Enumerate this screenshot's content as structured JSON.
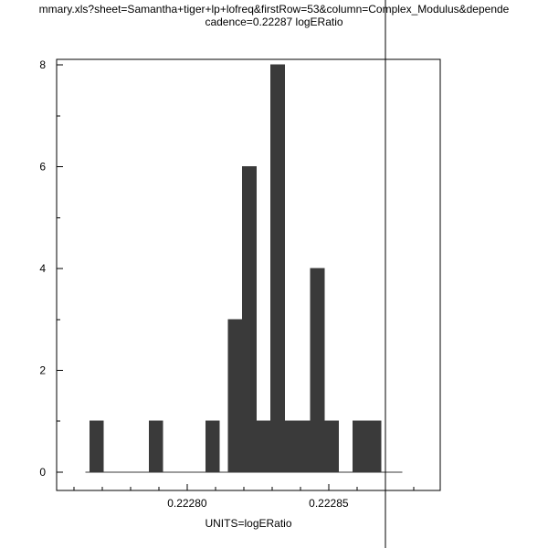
{
  "title": {
    "line1": "mmary.xls?sheet=Samantha+tiger+lp+lofreq&firstRow=53&column=Complex_Modulus&depende",
    "line2": "cadence=0.22287 logERatio"
  },
  "chart_data": {
    "type": "bar",
    "subtype": "histogram",
    "title": "cadence=0.22287 logERatio",
    "xlabel": "UNITS=logERatio",
    "ylabel": "",
    "xlim": [
      0.2227539,
      0.2228894
    ],
    "ylim": [
      -0.36,
      8.11
    ],
    "grid": false,
    "legend": false,
    "bin_width": 4.8e-06,
    "bars": [
      {
        "center": 0.222768,
        "count": 1
      },
      {
        "center": 0.222789,
        "count": 1
      },
      {
        "center": 0.222809,
        "count": 1
      },
      {
        "center": 0.222817,
        "count": 3
      },
      {
        "center": 0.222822,
        "count": 6
      },
      {
        "center": 0.222827,
        "count": 1
      },
      {
        "center": 0.222832,
        "count": 8
      },
      {
        "center": 0.222836,
        "count": 1
      },
      {
        "center": 0.222841,
        "count": 1
      },
      {
        "center": 0.222846,
        "count": 4
      },
      {
        "center": 0.222851,
        "count": 1
      },
      {
        "center": 0.222861,
        "count": 1
      },
      {
        "center": 0.222866,
        "count": 1
      }
    ],
    "baseline_extent": [
      0.222764,
      0.222876
    ],
    "marker_line": {
      "value": 0.22287,
      "label": "cadence"
    },
    "x_ticks_major": [
      {
        "value": 0.2228,
        "label": "0.22280"
      },
      {
        "value": 0.22285,
        "label": "0.22285"
      }
    ],
    "x_ticks_minor": [
      0.22276,
      0.22277,
      0.22278,
      0.22279,
      0.22281,
      0.22282,
      0.22283,
      0.22284,
      0.22286,
      0.22287,
      0.22288
    ],
    "y_ticks_major": [
      {
        "value": 0,
        "label": "0"
      },
      {
        "value": 2,
        "label": "2"
      },
      {
        "value": 4,
        "label": "4"
      },
      {
        "value": 6,
        "label": "6"
      },
      {
        "value": 8,
        "label": "8"
      }
    ],
    "y_ticks_minor": [
      1,
      3,
      5,
      7
    ],
    "colors": {
      "bar": "#3a3a3a",
      "axis": "#000000",
      "marker": "#000000",
      "background": "#ffffff",
      "text": "#000000"
    }
  }
}
